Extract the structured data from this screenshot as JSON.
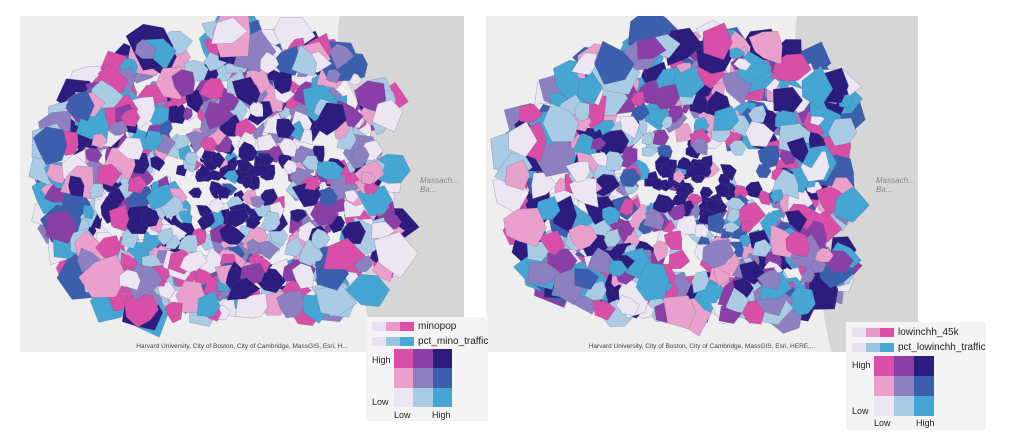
{
  "maps": [
    {
      "id": "left",
      "sea_label": "Massach... Ba...",
      "attribution": "Harvard University, City of Boston, City of Cambridge, MassGIS, Esri, H...",
      "legend": {
        "var_a": "minopop",
        "var_b": "pct_mino_traffic",
        "y_high": "High",
        "y_low": "Low",
        "x_low": "Low",
        "x_high": "High"
      }
    },
    {
      "id": "right",
      "sea_label": "Massach... Ba...",
      "attribution": "Harvard University, City of Boston, City of Cambridge, MassGIS, Esri, HERE,...",
      "legend": {
        "var_a": "lowinchh_45k",
        "var_b": "pct_lowinchh_traffic",
        "y_high": "High",
        "y_low": "Low",
        "x_low": "Low",
        "x_high": "High"
      }
    }
  ],
  "colors": {
    "ramp_a": [
      "#e8e2f0",
      "#e69bc9",
      "#de4fa7"
    ],
    "ramp_b": [
      "#e8e2f0",
      "#9bc4e0",
      "#4aa8d6"
    ],
    "matrix": [
      [
        "#d94ea6",
        "#8a3fa6",
        "#2b1c7e"
      ],
      [
        "#e9a0cb",
        "#8d80c0",
        "#3b5fad"
      ],
      [
        "#ebe6f1",
        "#a9cbe3",
        "#45a6d3"
      ]
    ],
    "land": "#eeeeee",
    "water": "#d6d6d6",
    "boundary": "#5a5a8a"
  }
}
